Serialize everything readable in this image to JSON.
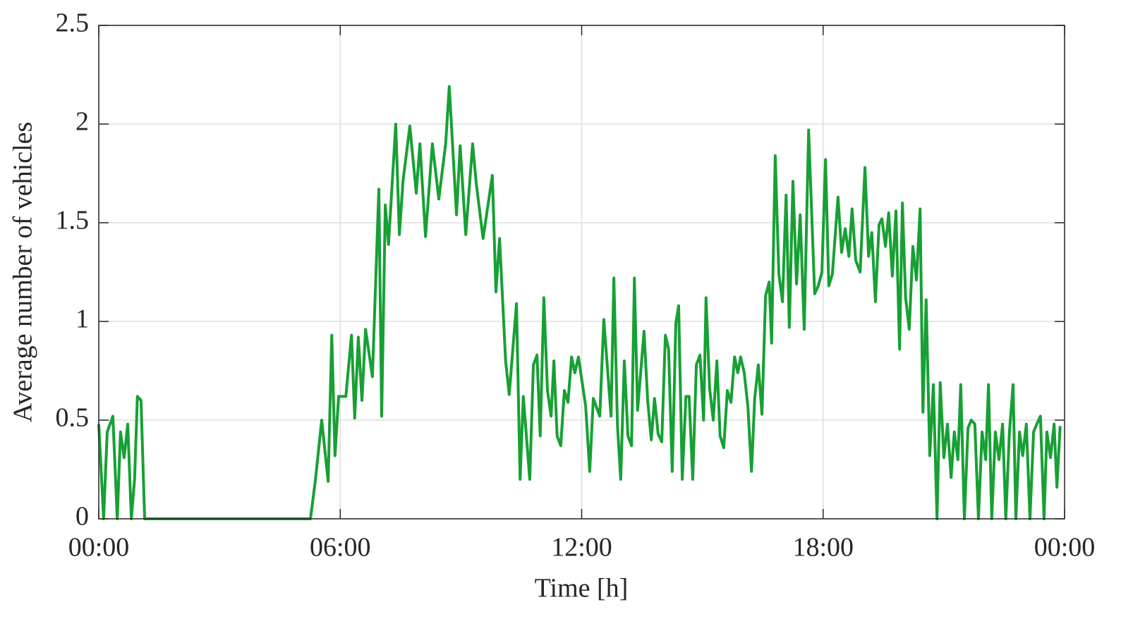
{
  "chart_data": {
    "type": "line",
    "xlabel": "Time [h]",
    "ylabel": "Average number of vehicles",
    "x": [
      0,
      0.12,
      0.21,
      0.35,
      0.46,
      0.54,
      0.63,
      0.72,
      0.81,
      0.89,
      0.96,
      1.05,
      1.14,
      5.26,
      5.38,
      5.54,
      5.7,
      5.79,
      5.87,
      5.96,
      6.14,
      6.28,
      6.36,
      6.45,
      6.54,
      6.63,
      6.8,
      6.96,
      7.03,
      7.12,
      7.2,
      7.38,
      7.47,
      7.56,
      7.73,
      7.89,
      7.98,
      8.12,
      8.29,
      8.45,
      8.62,
      8.71,
      8.89,
      8.98,
      9.12,
      9.29,
      9.38,
      9.55,
      9.78,
      9.87,
      9.96,
      10.11,
      10.2,
      10.38,
      10.47,
      10.55,
      10.71,
      10.8,
      10.89,
      10.97,
      11.06,
      11.15,
      11.24,
      11.31,
      11.39,
      11.48,
      11.57,
      11.66,
      11.75,
      11.83,
      11.92,
      12.1,
      12.2,
      12.29,
      12.45,
      12.55,
      12.73,
      12.8,
      12.89,
      12.97,
      13.06,
      13.15,
      13.24,
      13.31,
      13.39,
      13.55,
      13.64,
      13.73,
      13.81,
      13.9,
      13.99,
      14.08,
      14.16,
      14.25,
      14.34,
      14.41,
      14.5,
      14.59,
      14.67,
      14.76,
      14.85,
      14.94,
      15.03,
      15.09,
      15.18,
      15.27,
      15.36,
      15.44,
      15.53,
      15.62,
      15.71,
      15.8,
      15.88,
      15.95,
      16.04,
      16.13,
      16.22,
      16.3,
      16.39,
      16.48,
      16.57,
      16.66,
      16.72,
      16.81,
      16.9,
      16.99,
      17.08,
      17.16,
      17.25,
      17.34,
      17.43,
      17.53,
      17.64,
      17.71,
      17.79,
      17.88,
      17.97,
      18.06,
      18.14,
      18.23,
      18.37,
      18.46,
      18.55,
      18.64,
      18.72,
      18.81,
      18.92,
      19.04,
      19.13,
      19.21,
      19.3,
      19.39,
      19.46,
      19.55,
      19.63,
      19.72,
      19.81,
      19.9,
      19.97,
      20.05,
      20.14,
      20.23,
      20.32,
      20.41,
      20.48,
      20.56,
      20.65,
      20.74,
      20.83,
      20.91,
      21.0,
      21.09,
      21.18,
      21.26,
      21.35,
      21.42,
      21.51,
      21.6,
      21.68,
      21.77,
      21.86,
      21.95,
      22.04,
      22.11,
      22.19,
      22.28,
      22.37,
      22.46,
      22.54,
      22.63,
      22.72,
      22.79,
      22.88,
      22.96,
      23.05,
      23.14,
      23.23,
      23.31,
      23.4,
      23.49,
      23.56,
      23.65,
      23.74,
      23.81,
      23.89
    ],
    "values": [
      0.48,
      0,
      0.44,
      0.52,
      0,
      0.44,
      0.31,
      0.48,
      0,
      0.2,
      0.62,
      0.6,
      0,
      0,
      0.19,
      0.5,
      0.19,
      0.93,
      0.32,
      0.62,
      0.62,
      0.93,
      0.51,
      0.92,
      0.6,
      0.96,
      0.72,
      1.67,
      0.52,
      1.59,
      1.39,
      2.0,
      1.44,
      1.71,
      1.99,
      1.65,
      1.9,
      1.43,
      1.9,
      1.62,
      1.9,
      2.19,
      1.54,
      1.89,
      1.44,
      1.9,
      1.7,
      1.42,
      1.74,
      1.15,
      1.42,
      0.8,
      0.63,
      1.09,
      0.2,
      0.62,
      0.2,
      0.78,
      0.83,
      0.42,
      1.12,
      0.65,
      0.52,
      0.8,
      0.42,
      0.37,
      0.65,
      0.59,
      0.82,
      0.74,
      0.82,
      0.57,
      0.24,
      0.61,
      0.52,
      1.01,
      0.52,
      1.22,
      0.47,
      0.2,
      0.8,
      0.42,
      0.37,
      1.22,
      0.55,
      0.95,
      0.6,
      0.4,
      0.61,
      0.43,
      0.39,
      0.93,
      0.86,
      0.24,
      0.99,
      1.08,
      0.2,
      0.62,
      0.62,
      0.2,
      0.78,
      0.83,
      0.5,
      1.12,
      0.66,
      0.5,
      0.8,
      0.42,
      0.36,
      0.65,
      0.59,
      0.82,
      0.74,
      0.82,
      0.74,
      0.57,
      0.24,
      0.61,
      0.78,
      0.53,
      1.13,
      1.2,
      0.89,
      1.84,
      1.24,
      1.1,
      1.64,
      0.97,
      1.71,
      1.19,
      1.54,
      0.96,
      1.97,
      1.58,
      1.14,
      1.18,
      1.25,
      1.82,
      1.18,
      1.24,
      1.63,
      1.35,
      1.47,
      1.33,
      1.57,
      1.31,
      1.25,
      1.78,
      1.33,
      1.45,
      1.1,
      1.49,
      1.52,
      1.38,
      1.55,
      1.23,
      1.56,
      0.86,
      1.6,
      1.12,
      0.96,
      1.38,
      1.21,
      1.57,
      0.54,
      1.11,
      0.32,
      0.68,
      0,
      0.69,
      0.31,
      0.48,
      0.21,
      0.44,
      0.3,
      0.68,
      0,
      0.46,
      0.5,
      0.48,
      0,
      0.44,
      0.3,
      0.68,
      0,
      0.44,
      0.3,
      0.48,
      0,
      0.44,
      0.68,
      0,
      0.44,
      0.32,
      0.48,
      0,
      0.44,
      0.48,
      0.52,
      0,
      0.44,
      0.31,
      0.48,
      0.16,
      0.47
    ],
    "color": "#17a034",
    "xlim": [
      0,
      24
    ],
    "xticks": [
      {
        "value": 0,
        "label": "00:00"
      },
      {
        "value": 6,
        "label": "06:00"
      },
      {
        "value": 12,
        "label": "12:00"
      },
      {
        "value": 18,
        "label": "18:00"
      },
      {
        "value": 24,
        "label": "00:00"
      }
    ],
    "ylim": [
      0,
      2.5
    ],
    "yticks": [
      0,
      0.5,
      1,
      1.5,
      2,
      2.5
    ],
    "grid": true
  }
}
